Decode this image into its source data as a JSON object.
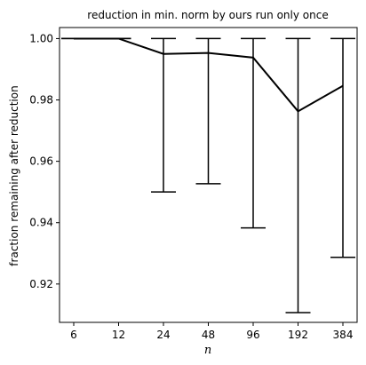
{
  "chart_data": {
    "type": "line",
    "title": "reduction in min. norm by ours run only once",
    "xlabel": "n",
    "ylabel": "fraction remaining after reduction",
    "categories": [
      "6",
      "12",
      "24",
      "48",
      "96",
      "192",
      "384"
    ],
    "series": [
      {
        "values": [
          1.0,
          1.0,
          0.995,
          0.9953,
          0.9938,
          0.9763,
          0.9846
        ],
        "err_low": [
          1.0,
          1.0,
          0.95,
          0.9527,
          0.9383,
          0.9107,
          0.9287
        ],
        "err_high": [
          1.0,
          1.0,
          1.0,
          1.0,
          1.0,
          1.0,
          1.0
        ]
      }
    ],
    "ylim": [
      0.9075,
      1.0036
    ],
    "yticks": [
      0.92,
      0.94,
      0.96,
      0.98,
      1.0
    ],
    "ytick_labels": [
      "0.92",
      "0.94",
      "0.96",
      "0.98",
      "1.00"
    ],
    "grid": false,
    "line_color": "#000000"
  }
}
